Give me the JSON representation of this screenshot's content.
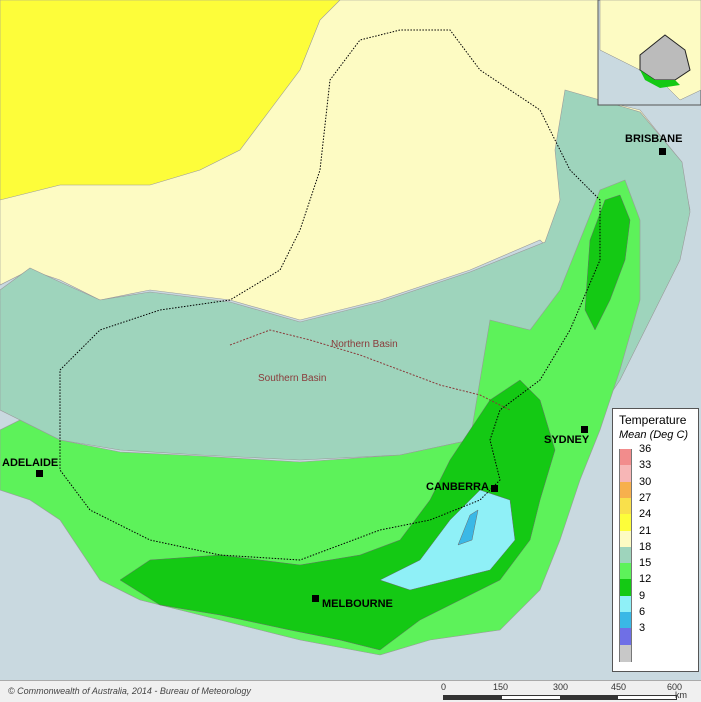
{
  "map": {
    "cities": [
      {
        "id": "brisbane",
        "name": "BRISBANE"
      },
      {
        "id": "sydney",
        "name": "SYDNEY"
      },
      {
        "id": "canberra",
        "name": "CANBERRA"
      },
      {
        "id": "melbourne",
        "name": "MELBOURNE"
      },
      {
        "id": "adelaide",
        "name": "ADELAIDE"
      }
    ],
    "basins": {
      "northern": "Northern Basin",
      "southern": "Southern Basin"
    }
  },
  "legend": {
    "title": "Temperature",
    "subtitle": "Mean (Deg C)",
    "classes": [
      {
        "label": "36",
        "color": "#f28c8c"
      },
      {
        "label": "33",
        "color": "#f7b6b6"
      },
      {
        "label": "30",
        "color": "#f7b04d"
      },
      {
        "label": "27",
        "color": "#f9e04b"
      },
      {
        "label": "24",
        "color": "#fdfd3a"
      },
      {
        "label": "21",
        "color": "#fdfbc3"
      },
      {
        "label": "18",
        "color": "#9ed4bc"
      },
      {
        "label": "15",
        "color": "#5df25a"
      },
      {
        "label": "12",
        "color": "#14c914"
      },
      {
        "label": "9",
        "color": "#8ff0f7"
      },
      {
        "label": "6",
        "color": "#3ab8e6"
      },
      {
        "label": "3",
        "color": "#6f6fe6"
      },
      {
        "label": "",
        "color": "#c8c8c8"
      }
    ]
  },
  "scalebar": {
    "labels": [
      "0",
      "150",
      "300",
      "450",
      "600"
    ],
    "unit": "km"
  },
  "copyright": "© Commonwealth of Australia, 2014 - Bureau of Meteorology"
}
